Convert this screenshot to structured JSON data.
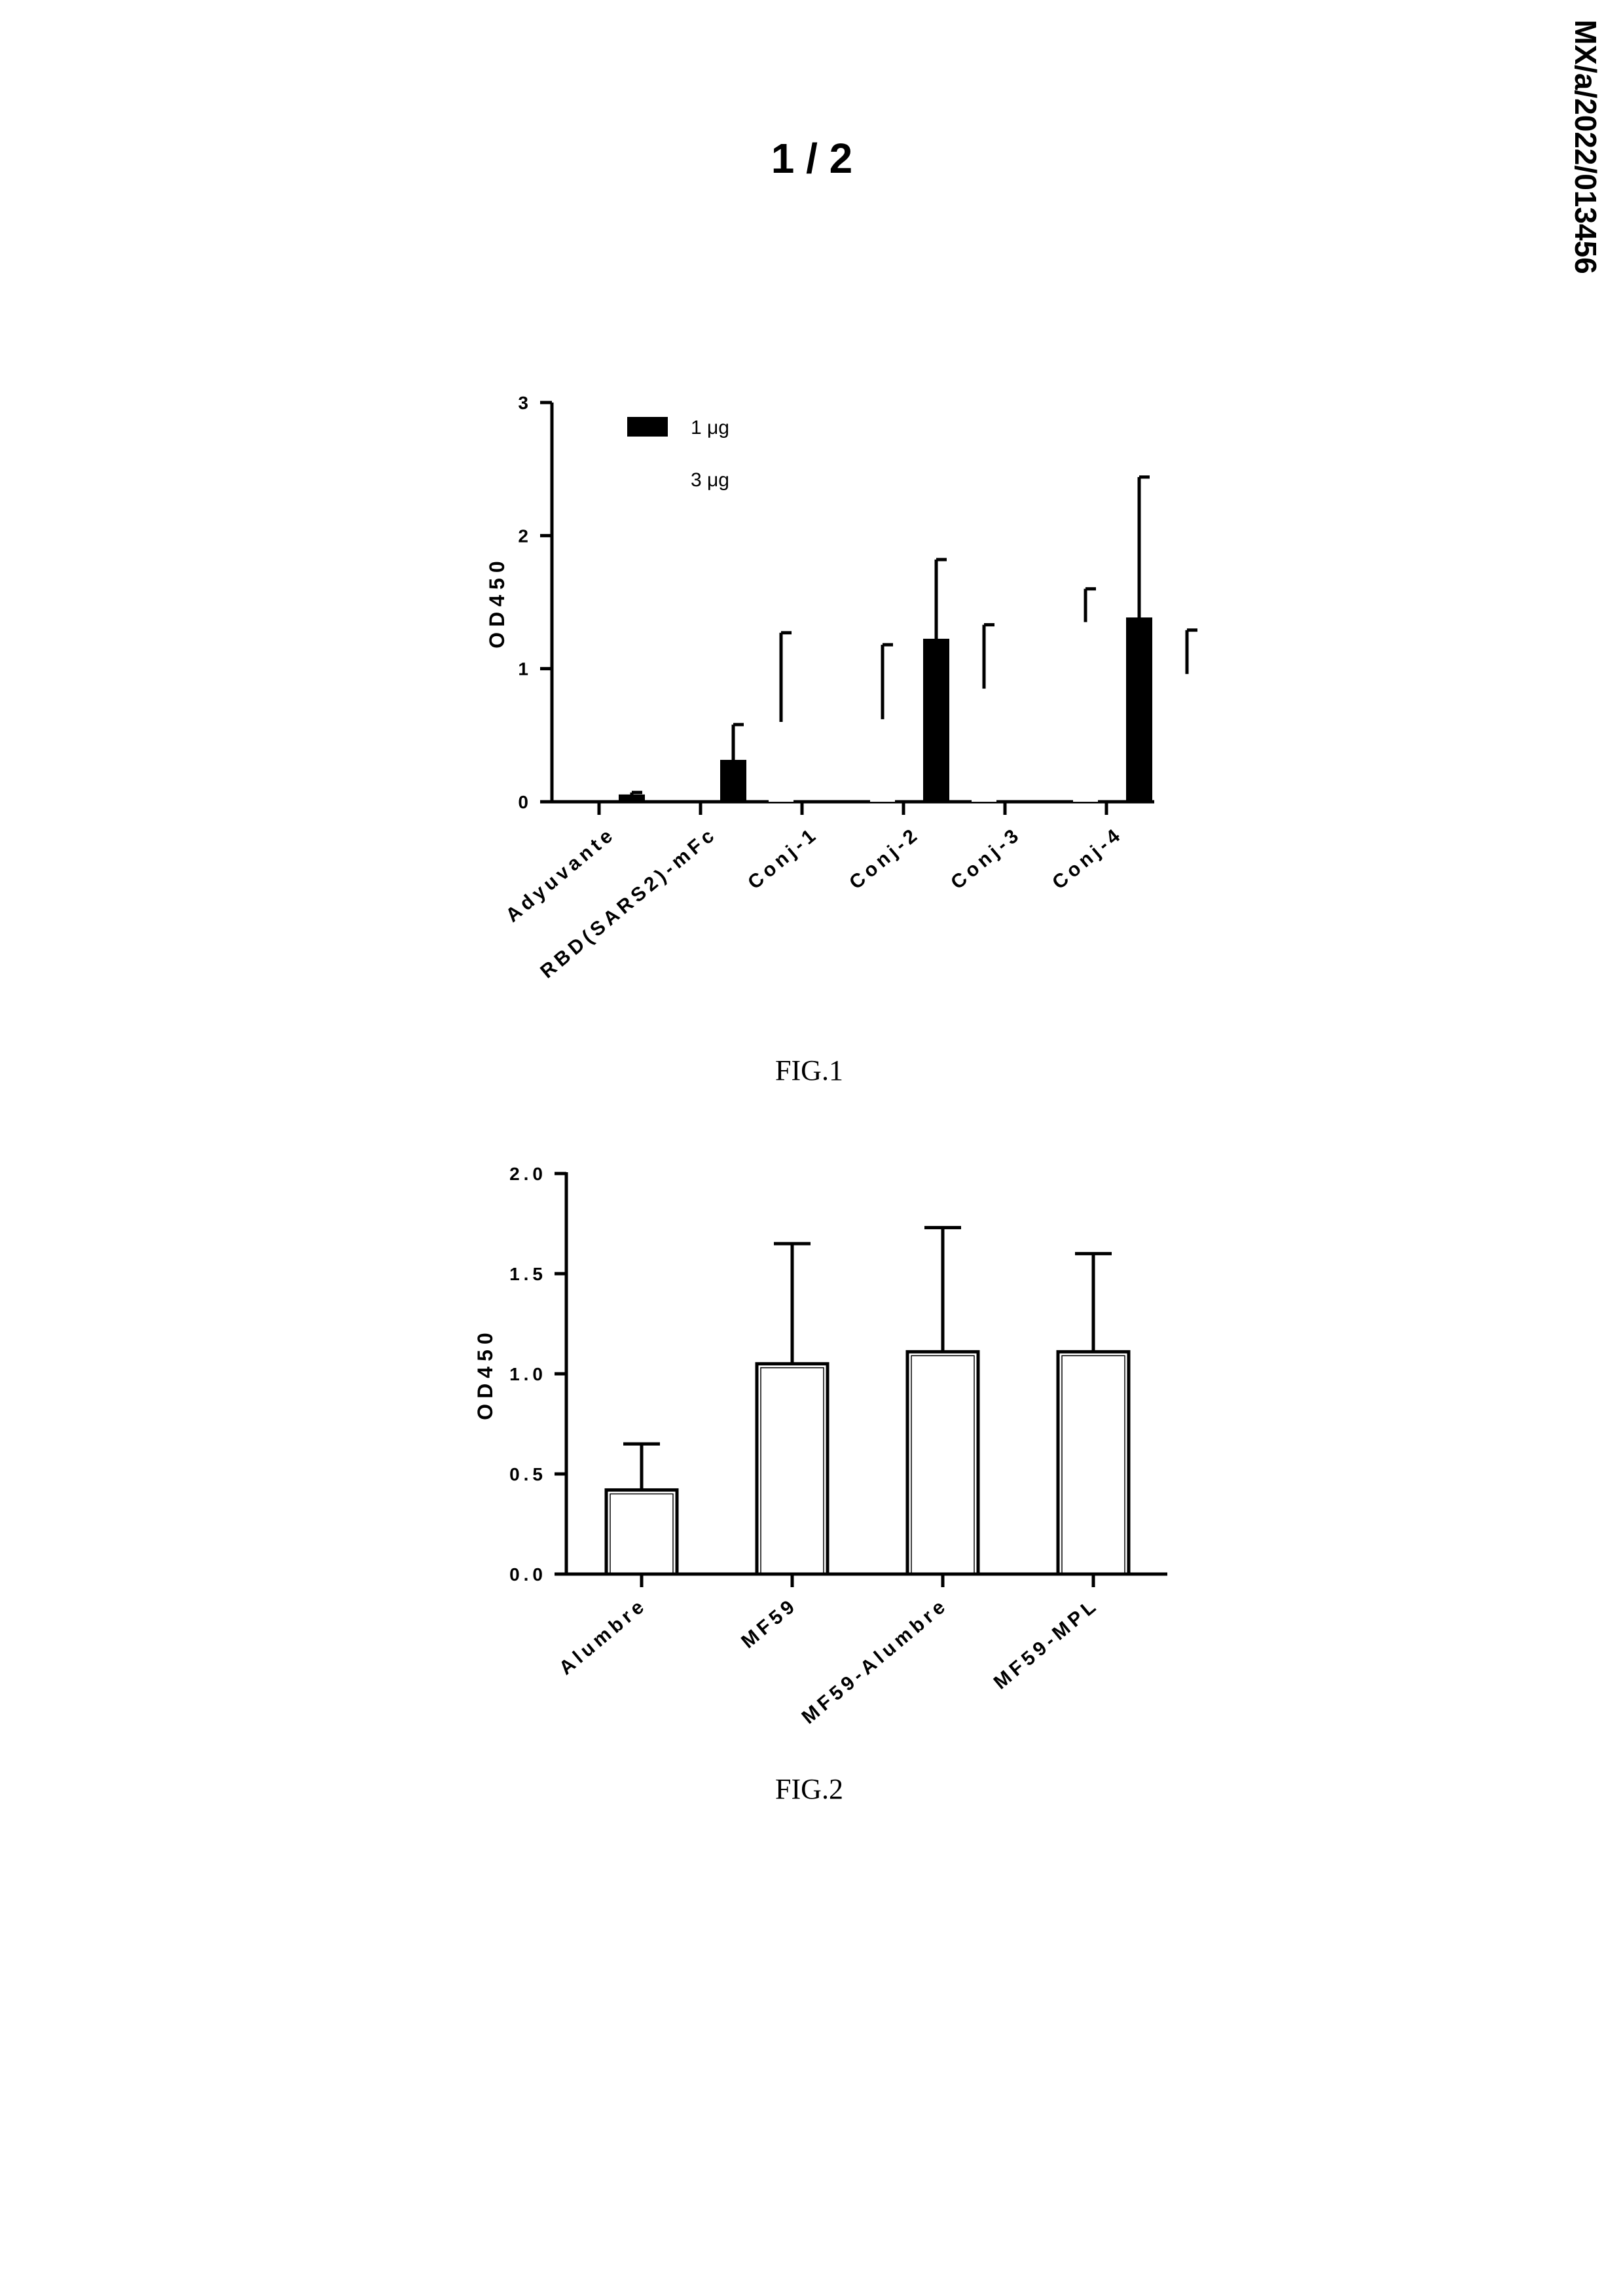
{
  "page": {
    "number": "1 / 2",
    "doc_id": "MX/a/2022/013456"
  },
  "captions": {
    "fig1": "FIG.1",
    "fig2": "FIG.2"
  },
  "chart_data": [
    {
      "type": "bar",
      "ylabel": "OD450",
      "ylim": [
        0,
        3
      ],
      "yticks": [
        "0",
        "1",
        "2",
        "3"
      ],
      "categories": [
        "Adyuvante",
        "RBD(SARS2)-mFc",
        "Conj-1",
        "Conj-2",
        "Conj-3",
        "Conj-4"
      ],
      "legend_position": "top-left",
      "series": [
        {
          "name": "1 μg",
          "color": "#000000",
          "values": [
            0.05,
            0.31,
            0,
            1.22,
            0,
            1.38
          ],
          "error_upper": [
            0.07,
            0.58,
            0,
            1.82,
            0,
            2.44
          ]
        },
        {
          "name": "3 μg",
          "color": "#ffffff",
          "values": [
            0,
            0.6,
            0.62,
            0.85,
            1.35,
            0.96
          ],
          "error_upper": [
            0,
            1.27,
            1.18,
            1.33,
            1.6,
            1.29
          ]
        }
      ]
    },
    {
      "type": "bar",
      "ylabel": "OD450",
      "ylim": [
        0,
        2
      ],
      "yticks": [
        "0.0",
        "0.5",
        "1.0",
        "1.5",
        "2.0"
      ],
      "categories": [
        "Alumbre",
        "MF59",
        "MF59-Alumbre",
        "MF59-MPL"
      ],
      "series": [
        {
          "color": "#ffffff",
          "values": [
            0.42,
            1.05,
            1.11,
            1.11
          ],
          "error_upper": [
            0.65,
            1.65,
            1.73,
            1.6
          ]
        }
      ]
    }
  ]
}
